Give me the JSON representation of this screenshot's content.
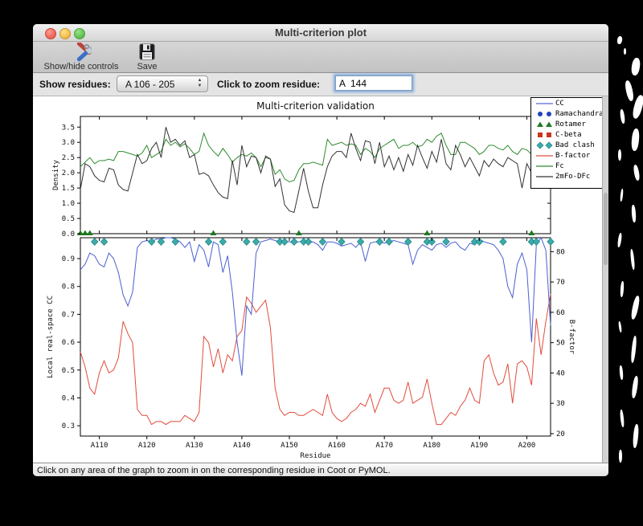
{
  "window": {
    "title": "Multi-criterion plot"
  },
  "toolbar": {
    "show_hide_label": "Show/hide controls",
    "save_label": "Save"
  },
  "controls": {
    "show_residues_label": "Show residues:",
    "residues_value": "A 106 - 205",
    "zoom_label": "Click to zoom residue:",
    "zoom_value": "A  144"
  },
  "statusbar": {
    "text": "Click on any area of the graph to zoom in on the corresponding residue in Coot or PyMOL."
  },
  "chart_data": {
    "type": "line",
    "title": "Multi-criterion validation",
    "xlabel": "Residue",
    "residue_start": 106,
    "residue_end": 205,
    "x_tick_residues": [
      110,
      120,
      130,
      140,
      150,
      160,
      170,
      180,
      190,
      200
    ],
    "x_tick_labels": [
      "A110",
      "A120",
      "A130",
      "A140",
      "A150",
      "A160",
      "A170",
      "A180",
      "A190",
      "A200"
    ],
    "panels": [
      {
        "name": "density",
        "ylabel": "Density",
        "ylabel_color": "#111111",
        "ylim": [
          0.0,
          3.85
        ],
        "yticks": [
          0.0,
          0.5,
          1.0,
          1.5,
          2.0,
          2.5,
          3.0,
          3.5
        ],
        "series": [
          {
            "name": "Fc",
            "color": "#2e8b2e",
            "values": [
              2.2,
              2.35,
              2.5,
              2.3,
              2.4,
              2.4,
              2.45,
              2.4,
              2.7,
              2.7,
              2.65,
              2.6,
              2.55,
              2.65,
              2.9,
              2.5,
              2.6,
              2.7,
              3.1,
              2.9,
              3.0,
              2.85,
              2.95,
              2.8,
              2.6,
              2.7,
              3.3,
              2.9,
              2.7,
              2.55,
              2.8,
              2.6,
              2.35,
              2.5,
              2.6,
              2.55,
              2.65,
              2.5,
              2.2,
              2.5,
              2.45,
              1.95,
              2.1,
              1.8,
              1.7,
              1.75,
              2.1,
              2.3,
              2.3,
              2.35,
              2.3,
              2.25,
              3.1,
              2.9,
              2.95,
              3.0,
              2.9,
              2.95,
              2.9,
              2.6,
              2.8,
              2.7,
              2.5,
              2.8,
              2.9,
              3.0,
              3.1,
              2.8,
              2.9,
              2.9,
              3.0,
              2.85,
              2.9,
              3.1,
              3.0,
              3.2,
              3.3,
              2.9,
              2.6,
              2.6,
              3.0,
              3.0,
              2.9,
              2.8,
              2.6,
              2.7,
              2.9,
              2.9,
              2.8,
              2.75,
              2.9,
              2.7,
              2.6,
              2.8,
              2.75,
              2.6,
              2.9,
              2.6,
              2.9,
              2.8
            ]
          },
          {
            "name": "2mFo-DFc",
            "color": "#333333",
            "values": [
              1.45,
              2.3,
              2.2,
              1.9,
              1.75,
              1.7,
              2.15,
              2.1,
              1.6,
              1.45,
              1.4,
              2.0,
              2.6,
              2.3,
              2.4,
              2.8,
              3.0,
              2.5,
              3.5,
              3.0,
              3.1,
              2.9,
              3.05,
              2.5,
              2.6,
              1.95,
              2.0,
              1.9,
              1.6,
              1.35,
              1.2,
              1.15,
              2.4,
              1.6,
              2.9,
              2.2,
              2.55,
              2.5,
              2.0,
              2.55,
              2.45,
              1.55,
              1.8,
              0.95,
              0.75,
              0.7,
              1.4,
              2.15,
              1.4,
              0.85,
              0.85,
              1.6,
              2.2,
              2.55,
              2.7,
              2.7,
              2.5,
              3.3,
              2.8,
              2.4,
              3.05,
              3.0,
              2.3,
              3.0,
              2.2,
              2.55,
              2.1,
              2.5,
              2.05,
              2.6,
              2.25,
              2.9,
              2.5,
              2.15,
              2.7,
              2.35,
              3.1,
              2.3,
              2.1,
              2.9,
              2.6,
              2.2,
              2.5,
              2.2,
              1.9,
              2.4,
              2.2,
              2.45,
              2.3,
              2.2,
              2.5,
              2.4,
              2.3,
              1.5,
              2.3,
              2.0,
              2.5,
              1.5,
              2.3,
              1.8
            ]
          }
        ]
      },
      {
        "name": "cc_bfactor",
        "ylabel_left": "Local real-space CC",
        "ylabel_left_color": "#4a5fd0",
        "ylim_left": [
          0.263,
          0.975
        ],
        "yticks_left": [
          0.3,
          0.4,
          0.5,
          0.6,
          0.7,
          0.8,
          0.9
        ],
        "ylabel_right": "B-factor",
        "ylabel_right_color": "#e04c3c",
        "ylim_right": [
          19.2,
          84.6
        ],
        "yticks_right": [
          20,
          30,
          40,
          50,
          60,
          70,
          80
        ],
        "series": [
          {
            "name": "CC",
            "axis": "left",
            "color": "#4a5fd0",
            "values": [
              0.86,
              0.88,
              0.92,
              0.91,
              0.88,
              0.87,
              0.92,
              0.9,
              0.85,
              0.77,
              0.73,
              0.78,
              0.94,
              0.96,
              0.965,
              0.96,
              0.97,
              0.97,
              0.975,
              0.975,
              0.97,
              0.96,
              0.94,
              0.96,
              0.89,
              0.95,
              0.93,
              0.87,
              0.96,
              0.95,
              0.85,
              0.91,
              0.78,
              0.6,
              0.48,
              0.73,
              0.7,
              0.92,
              0.96,
              0.965,
              0.97,
              0.965,
              0.96,
              0.965,
              0.96,
              0.955,
              0.96,
              0.965,
              0.955,
              0.96,
              0.95,
              0.93,
              0.96,
              0.96,
              0.955,
              0.945,
              0.95,
              0.955,
              0.94,
              0.96,
              0.89,
              0.955,
              0.96,
              0.96,
              0.955,
              0.96,
              0.965,
              0.96,
              0.955,
              0.95,
              0.88,
              0.93,
              0.95,
              0.94,
              0.93,
              0.95,
              0.955,
              0.94,
              0.955,
              0.96,
              0.94,
              0.93,
              0.955,
              0.95,
              0.97,
              0.96,
              0.955,
              0.95,
              0.93,
              0.9,
              0.8,
              0.76,
              0.88,
              0.92,
              0.86,
              0.6,
              0.95,
              0.975,
              0.93,
              0.66
            ]
          },
          {
            "name": "B-factor",
            "axis": "right",
            "color": "#e04c3c",
            "values": [
              47,
              42,
              35,
              33,
              40,
              44,
              40,
              41,
              45,
              57,
              53,
              50,
              28,
              26,
              26,
              23,
              24,
              24,
              23,
              24,
              24,
              24,
              26,
              25,
              24,
              27,
              52,
              50,
              42,
              48,
              40,
              46,
              44,
              52,
              54,
              65,
              63,
              60,
              62,
              64,
              55,
              35,
              28,
              26,
              27,
              27,
              26,
              26,
              27,
              28,
              27,
              26,
              33,
              27,
              25,
              24,
              25,
              27,
              28,
              30,
              29,
              33,
              27,
              31,
              35,
              35,
              31,
              30,
              31,
              37,
              30,
              31,
              32,
              38,
              30,
              23,
              23,
              25,
              27,
              26,
              29,
              31,
              35,
              31,
              30,
              44,
              46,
              40,
              36,
              37,
              43,
              30,
              43,
              44,
              42,
              36,
              58,
              46,
              57,
              66
            ]
          }
        ]
      }
    ],
    "outlier_markers": {
      "rotamer": {
        "color": "#1f7a1f",
        "residues": [
          106,
          107,
          108,
          134,
          152,
          179,
          201
        ]
      },
      "bad_clash": {
        "color": "#3aabab",
        "residues": [
          109,
          111,
          121,
          123,
          126,
          133,
          136,
          141,
          143,
          148,
          149,
          151,
          153,
          154,
          157,
          161,
          165,
          169,
          171,
          175,
          179,
          180,
          183,
          189,
          190,
          195,
          201,
          202,
          205
        ]
      },
      "ramachandran": {
        "color": "#2244bb",
        "residues": []
      },
      "c_beta": {
        "color": "#cc3322",
        "residues": []
      }
    },
    "legend": {
      "position": "top-right",
      "entries": [
        {
          "label": "CC",
          "symbol": "line",
          "color": "#5566dd"
        },
        {
          "label": "Ramachandran",
          "symbol": "dots",
          "color": "#2244bb"
        },
        {
          "label": "Rotamer",
          "symbol": "triangles",
          "color": "#1f7a1f"
        },
        {
          "label": "C-beta",
          "symbol": "squares",
          "color": "#cc3322"
        },
        {
          "label": "Bad clash",
          "symbol": "diamonds",
          "color": "#3aabab"
        },
        {
          "label": "B-factor",
          "symbol": "line",
          "color": "#e04c3c"
        },
        {
          "label": "Fc",
          "symbol": "line",
          "color": "#2e8b2e"
        },
        {
          "label": "2mFo-DFc",
          "symbol": "line",
          "color": "#333333"
        }
      ]
    }
  }
}
